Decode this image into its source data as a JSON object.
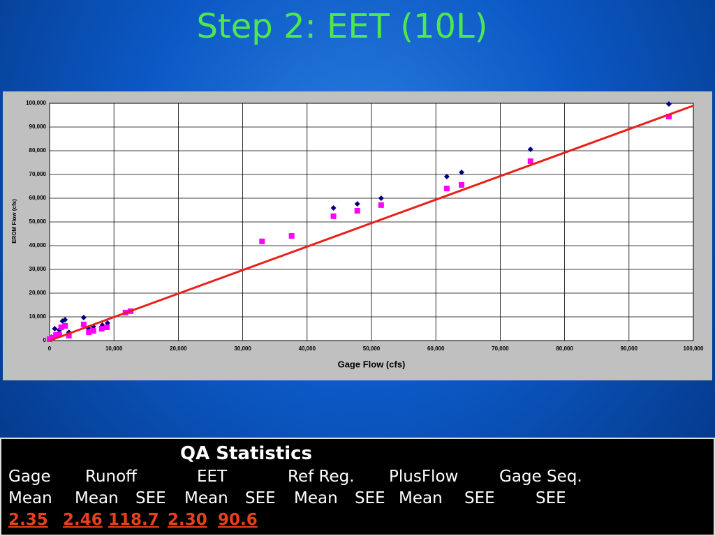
{
  "slide_title": "Step 2: EET (10L)",
  "chart_data": {
    "type": "scatter",
    "xlabel": "Gage Flow (cfs)",
    "ylabel": "EROM Flow (cfs)",
    "xlim": [
      0,
      100000
    ],
    "ylim": [
      0,
      100000
    ],
    "xticks": [
      0,
      {
        "value": 10000,
        "label": "10,000"
      },
      {
        "value": 20000,
        "label": "20,000"
      },
      {
        "value": 30000,
        "label": "30,000"
      },
      {
        "value": 40000,
        "label": "40,000"
      },
      {
        "value": 50000,
        "label": "50,000"
      },
      {
        "value": 60000,
        "label": "60,000"
      },
      {
        "value": 70000,
        "label": "70,000"
      },
      {
        "value": 80000,
        "label": "80,000"
      },
      {
        "value": 90000,
        "label": "90,000"
      },
      {
        "value": 100000,
        "label": "100,000"
      }
    ],
    "yticks": [
      0,
      {
        "value": 10000,
        "label": "10,000"
      },
      {
        "value": 20000,
        "label": "20,000"
      },
      {
        "value": 30000,
        "label": "30,000"
      },
      {
        "value": 40000,
        "label": "40,000"
      },
      {
        "value": 50000,
        "label": "50,000"
      },
      {
        "value": 60000,
        "label": "60,000"
      },
      {
        "value": 70000,
        "label": "70,000"
      },
      {
        "value": 80000,
        "label": "80,000"
      },
      {
        "value": 90000,
        "label": "90,000"
      },
      {
        "value": 100000,
        "label": "100,000"
      }
    ],
    "grid": true,
    "series": [
      {
        "marker": "diamond",
        "color": "#000080",
        "x": [
          96200,
          74700,
          64000,
          61700,
          51500,
          47800,
          44100,
          9000,
          8200,
          6800,
          6000,
          5300,
          2400,
          2000,
          3000,
          800,
          1500,
          300,
          1000
        ],
        "values": [
          99700,
          80600,
          70900,
          69100,
          60000,
          57600,
          55900,
          7400,
          6500,
          5900,
          5300,
          9700,
          8800,
          8200,
          3500,
          5000,
          4500,
          1500,
          2500
        ]
      },
      {
        "marker": "square",
        "color": "#ff00ff",
        "x": [
          96200,
          74700,
          64000,
          61700,
          51500,
          47800,
          44100,
          37600,
          33000,
          12600,
          11800,
          8900,
          8100,
          6800,
          6100,
          5300,
          2400,
          1800,
          3000,
          1000,
          400,
          1500,
          0
        ],
        "values": [
          94400,
          75600,
          65600,
          64100,
          57100,
          54700,
          52400,
          44100,
          41800,
          12400,
          11800,
          5600,
          5000,
          4100,
          3500,
          6800,
          6200,
          5600,
          2100,
          2400,
          1200,
          2600,
          600
        ]
      },
      {
        "type": "line",
        "color": "#e8201a",
        "x": [
          0,
          100000
        ],
        "values": [
          0,
          99000
        ]
      }
    ]
  },
  "stats": {
    "title": "QA Statistics",
    "headers": [
      "Gage",
      "Runoff",
      "EET",
      "Ref Reg.",
      "PlusFlow",
      "Gage Seq."
    ],
    "subheaders": [
      "Mean",
      "Mean",
      "SEE",
      "Mean",
      "SEE",
      "Mean",
      "SEE",
      "Mean",
      "SEE",
      "SEE"
    ],
    "values": [
      "2.35",
      "2.46",
      "118.7",
      "2.30",
      "90.6"
    ]
  }
}
